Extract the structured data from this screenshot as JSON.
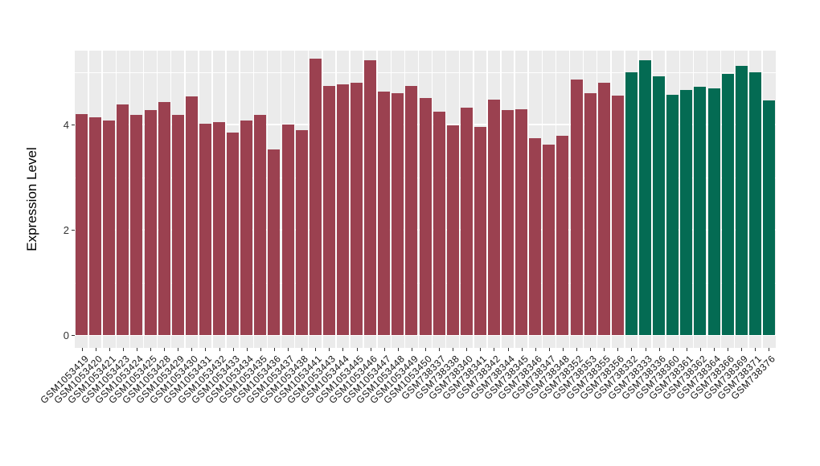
{
  "chart_data": {
    "type": "bar",
    "title": "",
    "ylabel": "Expression Level",
    "xlabel": "",
    "ylim": [
      0,
      5.4
    ],
    "y_major_ticks": [
      0,
      2,
      4
    ],
    "y_minor_gridlines": [
      1,
      3,
      5
    ],
    "legend_position": "none",
    "x_tick_label_rotation_deg": 45,
    "panel_background": "#EBEBEB",
    "gridline_color": "#FFFFFF",
    "axis_text_color": "#333333",
    "group_colors": {
      "group1": "#9B4150",
      "group2": "#046B53"
    },
    "categories": [
      "GSM1053419",
      "GSM1053420",
      "GSM1053421",
      "GSM1053423",
      "GSM1053424",
      "GSM1053425",
      "GSM1053428",
      "GSM1053429",
      "GSM1053430",
      "GSM1053431",
      "GSM1053432",
      "GSM1053433",
      "GSM1053434",
      "GSM1053435",
      "GSM1053436",
      "GSM1053437",
      "GSM1053438",
      "GSM1053441",
      "GSM1053443",
      "GSM1053444",
      "GSM1053445",
      "GSM1053446",
      "GSM1053447",
      "GSM1053448",
      "GSM1053449",
      "GSM1053450",
      "GSM738337",
      "GSM738338",
      "GSM738340",
      "GSM738341",
      "GSM738342",
      "GSM738344",
      "GSM738345",
      "GSM738346",
      "GSM738347",
      "GSM738348",
      "GSM738352",
      "GSM738353",
      "GSM738355",
      "GSM738356",
      "GSM738332",
      "GSM738333",
      "GSM738336",
      "GSM738360",
      "GSM738361",
      "GSM738362",
      "GSM738364",
      "GSM738366",
      "GSM738369",
      "GSM738371",
      "GSM738376"
    ],
    "values": [
      4.2,
      4.13,
      4.07,
      4.38,
      4.18,
      4.28,
      4.43,
      4.18,
      4.54,
      4.02,
      4.05,
      3.85,
      4.07,
      4.18,
      3.52,
      4.0,
      3.9,
      5.25,
      4.73,
      4.77,
      4.8,
      5.22,
      4.63,
      4.6,
      4.73,
      4.5,
      4.25,
      3.98,
      4.32,
      3.96,
      4.48,
      4.28,
      4.29,
      3.74,
      3.62,
      3.78,
      4.86,
      4.6,
      4.79,
      4.55,
      5.0,
      5.22,
      4.92,
      4.56,
      4.66,
      4.71,
      4.68,
      4.96,
      5.11,
      5.0,
      4.46
    ],
    "groups": [
      "group1",
      "group1",
      "group1",
      "group1",
      "group1",
      "group1",
      "group1",
      "group1",
      "group1",
      "group1",
      "group1",
      "group1",
      "group1",
      "group1",
      "group1",
      "group1",
      "group1",
      "group1",
      "group1",
      "group1",
      "group1",
      "group1",
      "group1",
      "group1",
      "group1",
      "group1",
      "group1",
      "group1",
      "group1",
      "group1",
      "group1",
      "group1",
      "group1",
      "group1",
      "group1",
      "group1",
      "group1",
      "group1",
      "group1",
      "group1",
      "group2",
      "group2",
      "group2",
      "group2",
      "group2",
      "group2",
      "group2",
      "group2",
      "group2",
      "group2",
      "group2"
    ]
  }
}
